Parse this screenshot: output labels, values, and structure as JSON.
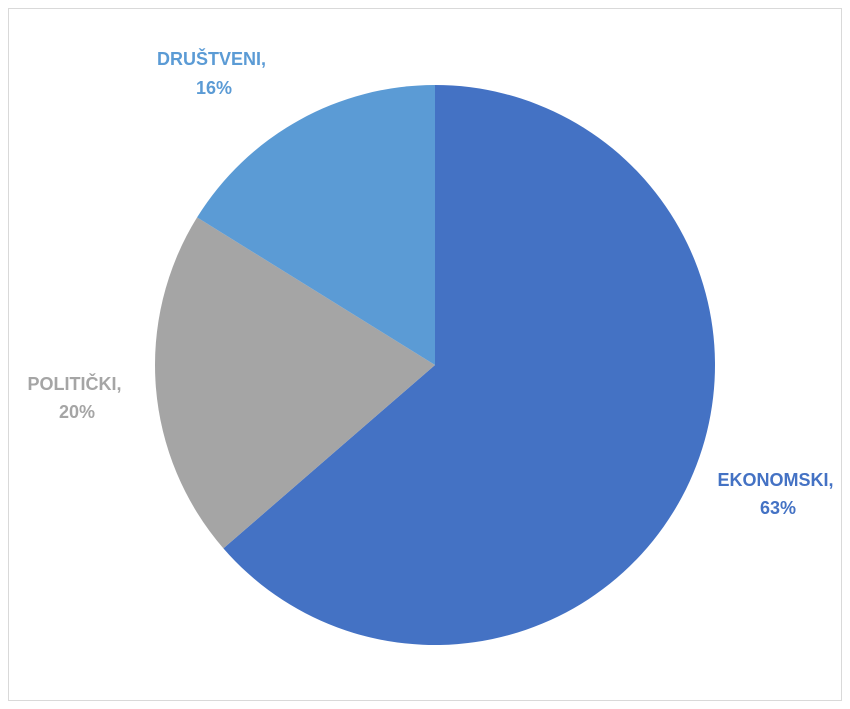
{
  "chart_data": {
    "type": "pie",
    "slices": [
      {
        "category": "EKONOMSKI",
        "value": 63,
        "label_name": "EKONOMSKI,",
        "label_value": "63%",
        "color": "#4472c4"
      },
      {
        "category": "POLITIČKI",
        "value": 20,
        "label_name": "POLITIČKI,",
        "label_value": "20%",
        "color": "#a5a5a5"
      },
      {
        "category": "DRUŠTVENI",
        "value": 16,
        "label_name": "DRUŠTVENI,",
        "label_value": "16%",
        "color": "#5b9bd5"
      }
    ],
    "start_angle_deg": 0,
    "direction": "clockwise",
    "legend": "none",
    "data_labels": "outside"
  }
}
